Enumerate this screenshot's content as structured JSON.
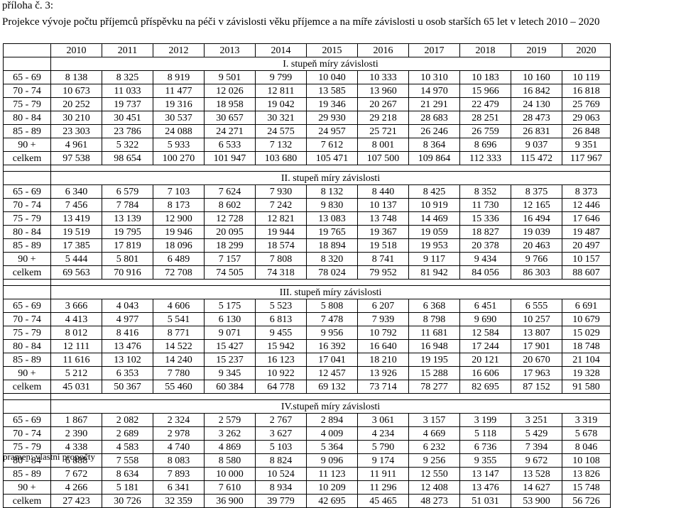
{
  "heading": "příloha č. 3:",
  "title": "Projekce vývoje počtu příjemců příspěvku na péči v závislosti věku příjemce a na míře závislosti u osob starších 65 let v letech 2010 – 2020",
  "years": [
    "2010",
    "2011",
    "2012",
    "2013",
    "2014",
    "2015",
    "2016",
    "2017",
    "2018",
    "2019",
    "2020"
  ],
  "sections": [
    {
      "title": "I. stupeň míry závislosti",
      "rows": [
        {
          "label": "65 - 69",
          "values": [
            "8 138",
            "8 325",
            "8 919",
            "9 501",
            "9 799",
            "10 040",
            "10 333",
            "10 310",
            "10 183",
            "10 160",
            "10 119"
          ]
        },
        {
          "label": "70 - 74",
          "values": [
            "10 673",
            "11 033",
            "11 477",
            "12 026",
            "12 811",
            "13 585",
            "13 960",
            "14 970",
            "15 966",
            "16 842",
            "16 818"
          ]
        },
        {
          "label": "75 - 79",
          "values": [
            "20 252",
            "19 737",
            "19 316",
            "18 958",
            "19 042",
            "19 346",
            "20 267",
            "21 291",
            "22 479",
            "24 130",
            "25 769"
          ]
        },
        {
          "label": "80 - 84",
          "values": [
            "30 210",
            "30 451",
            "30 537",
            "30 657",
            "30 321",
            "29 930",
            "29 218",
            "28 683",
            "28 251",
            "28 473",
            "29 063"
          ]
        },
        {
          "label": "85 - 89",
          "values": [
            "23 303",
            "23 786",
            "24 088",
            "24 271",
            "24 575",
            "24 957",
            "25 721",
            "26 246",
            "26 759",
            "26 831",
            "26 848"
          ]
        },
        {
          "label": "90 +",
          "values": [
            "4 961",
            "5 322",
            "5 933",
            "6 533",
            "7 132",
            "7 612",
            "8 001",
            "8 364",
            "8 696",
            "9 037",
            "9 351"
          ]
        },
        {
          "label": "celkem",
          "values": [
            "97 538",
            "98 654",
            "100 270",
            "101 947",
            "103 680",
            "105 471",
            "107 500",
            "109 864",
            "112 333",
            "115 472",
            "117 967"
          ]
        }
      ]
    },
    {
      "title": "II. stupeň míry závislosti",
      "rows": [
        {
          "label": "65 - 69",
          "values": [
            "6 340",
            "6 579",
            "7 103",
            "7 624",
            "7 930",
            "8 132",
            "8 440",
            "8 425",
            "8 352",
            "8 375",
            "8 373"
          ]
        },
        {
          "label": "70 - 74",
          "values": [
            "7 456",
            "7 784",
            "8 173",
            "8 602",
            "7 242",
            "9 830",
            "10 137",
            "10 919",
            "11 730",
            "12 165",
            "12 446"
          ]
        },
        {
          "label": "75 - 79",
          "values": [
            "13 419",
            "13 139",
            "12 900",
            "12 728",
            "12 821",
            "13 083",
            "13 748",
            "14 469",
            "15 336",
            "16 494",
            "17 646"
          ]
        },
        {
          "label": "80 - 84",
          "values": [
            "19 519",
            "19 795",
            "19 946",
            "20 095",
            "19 944",
            "19 765",
            "19 367",
            "19 059",
            "18 827",
            "19 039",
            "19 487"
          ]
        },
        {
          "label": "85 - 89",
          "values": [
            "17 385",
            "17 819",
            "18 096",
            "18 299",
            "18 574",
            "18 894",
            "19 518",
            "19 953",
            "20 378",
            "20 463",
            "20 497"
          ]
        },
        {
          "label": "90 +",
          "values": [
            "5 444",
            "5 801",
            "6 489",
            "7 157",
            "7 808",
            "8 320",
            "8 741",
            "9 117",
            "9 434",
            "9 766",
            "10 157"
          ]
        },
        {
          "label": "celkem",
          "values": [
            "69 563",
            "70 916",
            "72 708",
            "74 505",
            "74 318",
            "78 024",
            "79 952",
            "81 942",
            "84 056",
            "86 303",
            "88 607"
          ]
        }
      ]
    },
    {
      "title": "III. stupeň míry závislosti",
      "rows": [
        {
          "label": "65 - 69",
          "values": [
            "3 666",
            "4 043",
            "4 606",
            "5 175",
            "5 523",
            "5 808",
            "6 207",
            "6 368",
            "6 451",
            "6 555",
            "6 691"
          ]
        },
        {
          "label": "70 - 74",
          "values": [
            "4 413",
            "4 977",
            "5 541",
            "6 130",
            "6 813",
            "7 478",
            "7 939",
            "8 798",
            "9 690",
            "10 257",
            "10 679"
          ]
        },
        {
          "label": "75 - 79",
          "values": [
            "8 012",
            "8 416",
            "8 771",
            "9 071",
            "9 455",
            "9 956",
            "10 792",
            "11 681",
            "12 584",
            "13 807",
            "15 029"
          ]
        },
        {
          "label": "80 - 84",
          "values": [
            "12 111",
            "13 476",
            "14 522",
            "15 427",
            "15 942",
            "16 392",
            "16 640",
            "16 948",
            "17 244",
            "17 901",
            "18 748"
          ]
        },
        {
          "label": "85 - 89",
          "values": [
            "11 616",
            "13 102",
            "14 240",
            "15 237",
            "16 123",
            "17 041",
            "18 210",
            "19 195",
            "20 121",
            "20 670",
            "21 104"
          ]
        },
        {
          "label": "90 +",
          "values": [
            "5 212",
            "6 353",
            "7 780",
            "9 345",
            "10 922",
            "12 457",
            "13 926",
            "15 288",
            "16 606",
            "17 963",
            "19 328"
          ]
        },
        {
          "label": "celkem",
          "values": [
            "45 031",
            "50 367",
            "55 460",
            "60 384",
            "64 778",
            "69 132",
            "73 714",
            "78 277",
            "82 695",
            "87 152",
            "91 580"
          ]
        }
      ]
    },
    {
      "title": "IV.stupeň míry závislosti",
      "rows": [
        {
          "label": "65 - 69",
          "values": [
            "1 867",
            "2 082",
            "2 324",
            "2 579",
            "2 767",
            "2 894",
            "3 061",
            "3 157",
            "3 199",
            "3 251",
            "3 319"
          ]
        },
        {
          "label": "70 - 74",
          "values": [
            "2 390",
            "2 689",
            "2 978",
            "3 262",
            "3 627",
            "4 009",
            "4 234",
            "4 669",
            "5 118",
            "5 429",
            "5 678"
          ]
        },
        {
          "label": "75 - 79",
          "values": [
            "4 338",
            "4 583",
            "4 740",
            "4 869",
            "5 103",
            "5 364",
            "5 790",
            "6 232",
            "6 736",
            "7 394",
            "8 046"
          ]
        },
        {
          "label": "80 - 84",
          "values": [
            "6 888",
            "7 558",
            "8 083",
            "8 580",
            "8 824",
            "9 096",
            "9 174",
            "9 256",
            "9 355",
            "9 672",
            "10 108"
          ]
        },
        {
          "label": "85 - 89",
          "values": [
            "7 672",
            "8 634",
            "7 893",
            "10 000",
            "10 524",
            "11 123",
            "11 911",
            "12 550",
            "13 147",
            "13 528",
            "13 826"
          ]
        },
        {
          "label": "90 +",
          "values": [
            "4 266",
            "5 181",
            "6 341",
            "7 610",
            "8 934",
            "10 209",
            "11 296",
            "12 408",
            "13 476",
            "14 627",
            "15 748"
          ]
        },
        {
          "label": "celkem",
          "values": [
            "27 423",
            "30 726",
            "32 359",
            "36 900",
            "39 779",
            "42 695",
            "45 465",
            "48 273",
            "51 031",
            "53 900",
            "56 726"
          ]
        }
      ]
    }
  ],
  "source": "pramen: vlastní propočty"
}
